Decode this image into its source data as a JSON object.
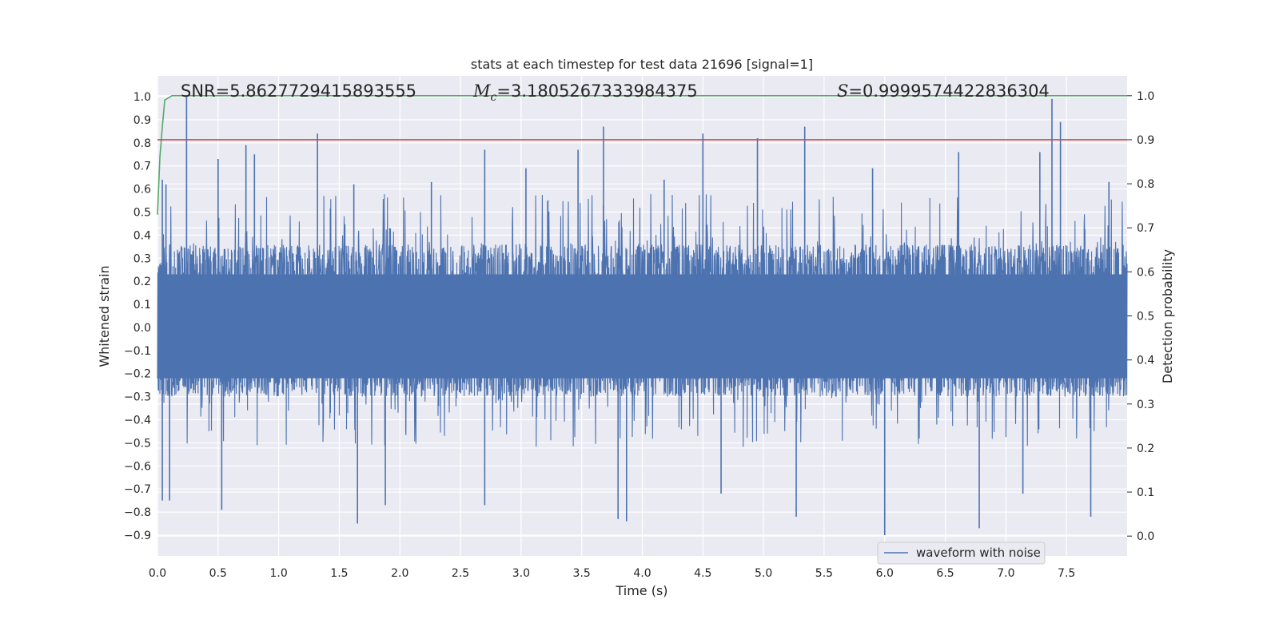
{
  "chart_data": {
    "type": "line",
    "title": "stats at each timestep for test data 21696 [signal=1]",
    "xlabel": "Time (s)",
    "ylabel": "Whitened strain",
    "ylabel_right": "Detection probability",
    "xlim": [
      0.0,
      8.0
    ],
    "ylim": [
      -0.99,
      1.09
    ],
    "ylim_right": [
      -0.045,
      1.045
    ],
    "x_ticks": [
      "0.0",
      "0.5",
      "1.0",
      "1.5",
      "2.0",
      "2.5",
      "3.0",
      "3.5",
      "4.0",
      "4.5",
      "5.0",
      "5.5",
      "6.0",
      "6.5",
      "7.0",
      "7.5"
    ],
    "x_tick_values": [
      0.0,
      0.5,
      1.0,
      1.5,
      2.0,
      2.5,
      3.0,
      3.5,
      4.0,
      4.5,
      5.0,
      5.5,
      6.0,
      6.5,
      7.0,
      7.5
    ],
    "y_ticks": [
      "1.0",
      "0.9",
      "0.8",
      "0.7",
      "0.6",
      "0.5",
      "0.4",
      "0.3",
      "0.2",
      "0.1",
      "0.0",
      "−0.1",
      "−0.2",
      "−0.3",
      "−0.4",
      "−0.5",
      "−0.6",
      "−0.7",
      "−0.8",
      "−0.9"
    ],
    "y_tick_values": [
      1.0,
      0.9,
      0.8,
      0.7,
      0.6,
      0.5,
      0.4,
      0.3,
      0.2,
      0.1,
      0.0,
      -0.1,
      -0.2,
      -0.3,
      -0.4,
      -0.5,
      -0.6,
      -0.7,
      -0.8,
      -0.9
    ],
    "y_right_ticks": [
      "1.0",
      "0.9",
      "0.8",
      "0.7",
      "0.6",
      "0.5",
      "0.4",
      "0.3",
      "0.2",
      "0.1",
      "0.0"
    ],
    "y_right_tick_values": [
      1.0,
      0.9,
      0.8,
      0.7,
      0.6,
      0.5,
      0.4,
      0.3,
      0.2,
      0.1,
      0.0
    ],
    "grid": true,
    "legend_position": "bottom-right",
    "annotations": {
      "snr": "SNR=5.8627729415893555",
      "mc_symbol": "M",
      "mc_subscript": "c",
      "mc_value": "=3.1805267333984375",
      "s_symbol": "S",
      "s_value": "=0.9999574422836304"
    },
    "series": [
      {
        "name": "waveform with noise",
        "color": "#4c72b0",
        "axis": "left",
        "noise_band": [
          -0.3,
          0.36
        ],
        "peaks": [
          {
            "x": 0.04,
            "y": 0.64
          },
          {
            "x": 0.07,
            "y": 0.62
          },
          {
            "x": 0.24,
            "y": 1.0
          },
          {
            "x": 0.5,
            "y": 0.73
          },
          {
            "x": 0.73,
            "y": 0.79
          },
          {
            "x": 0.8,
            "y": 0.75
          },
          {
            "x": 1.32,
            "y": 0.84
          },
          {
            "x": 1.62,
            "y": 0.62
          },
          {
            "x": 2.26,
            "y": 0.63
          },
          {
            "x": 2.7,
            "y": 0.77
          },
          {
            "x": 3.04,
            "y": 0.69
          },
          {
            "x": 3.47,
            "y": 0.77
          },
          {
            "x": 3.68,
            "y": 0.87
          },
          {
            "x": 4.18,
            "y": 0.64
          },
          {
            "x": 4.5,
            "y": 0.84
          },
          {
            "x": 4.95,
            "y": 0.82
          },
          {
            "x": 5.34,
            "y": 0.87
          },
          {
            "x": 5.9,
            "y": 0.69
          },
          {
            "x": 6.61,
            "y": 0.76
          },
          {
            "x": 7.28,
            "y": 0.76
          },
          {
            "x": 7.38,
            "y": 0.99
          },
          {
            "x": 7.45,
            "y": 0.89
          },
          {
            "x": 7.85,
            "y": 0.63
          }
        ],
        "troughs": [
          {
            "x": 0.04,
            "y": -0.75
          },
          {
            "x": 0.1,
            "y": -0.75
          },
          {
            "x": 0.53,
            "y": -0.79
          },
          {
            "x": 1.65,
            "y": -0.85
          },
          {
            "x": 1.88,
            "y": -0.77
          },
          {
            "x": 2.7,
            "y": -0.77
          },
          {
            "x": 3.8,
            "y": -0.83
          },
          {
            "x": 3.87,
            "y": -0.84
          },
          {
            "x": 4.65,
            "y": -0.72
          },
          {
            "x": 5.27,
            "y": -0.82
          },
          {
            "x": 6.0,
            "y": -0.9
          },
          {
            "x": 6.78,
            "y": -0.87
          },
          {
            "x": 7.14,
            "y": -0.72
          },
          {
            "x": 7.7,
            "y": -0.82
          }
        ]
      },
      {
        "name": "",
        "color": "#55a868",
        "axis": "right",
        "x": [
          0.0,
          0.02,
          0.04,
          0.06,
          0.12,
          8.0
        ],
        "y": [
          0.73,
          0.86,
          0.93,
          0.99,
          1.0,
          1.0
        ]
      },
      {
        "name": "",
        "color": "#c44e52",
        "axis": "right",
        "x": [
          0.0,
          8.0
        ],
        "y": [
          0.9,
          0.9
        ]
      }
    ]
  }
}
